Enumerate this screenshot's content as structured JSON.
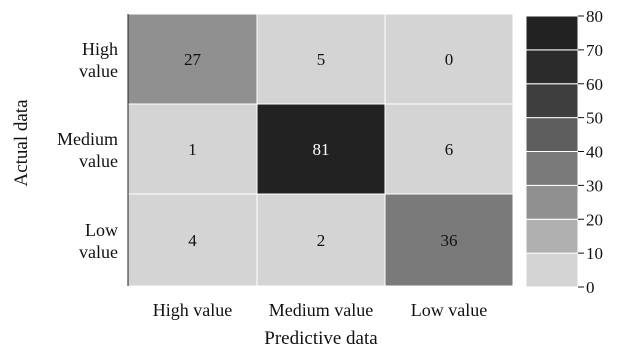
{
  "chart_data": {
    "type": "heatmap",
    "title": "",
    "xlabel": "Predictive data",
    "ylabel": "Actual data",
    "x_categories": [
      "High value",
      "Medium value",
      "Low value"
    ],
    "y_categories": [
      [
        "High",
        "value"
      ],
      [
        "Medium",
        "value"
      ],
      [
        "Low",
        "value"
      ]
    ],
    "matrix": [
      [
        27,
        5,
        0
      ],
      [
        1,
        81,
        6
      ],
      [
        4,
        2,
        36
      ]
    ],
    "colorbar": {
      "min": 0,
      "max": 80,
      "step": 10,
      "ticks": [
        "0",
        "10",
        "20",
        "30",
        "40",
        "50",
        "60",
        "70",
        "80"
      ],
      "colors": [
        "#d4d4d4",
        "#b0b0b0",
        "#909090",
        "#7a7a7a",
        "#5e5e5e",
        "#3e3e3e",
        "#2b2b2b",
        "#222222"
      ]
    }
  }
}
